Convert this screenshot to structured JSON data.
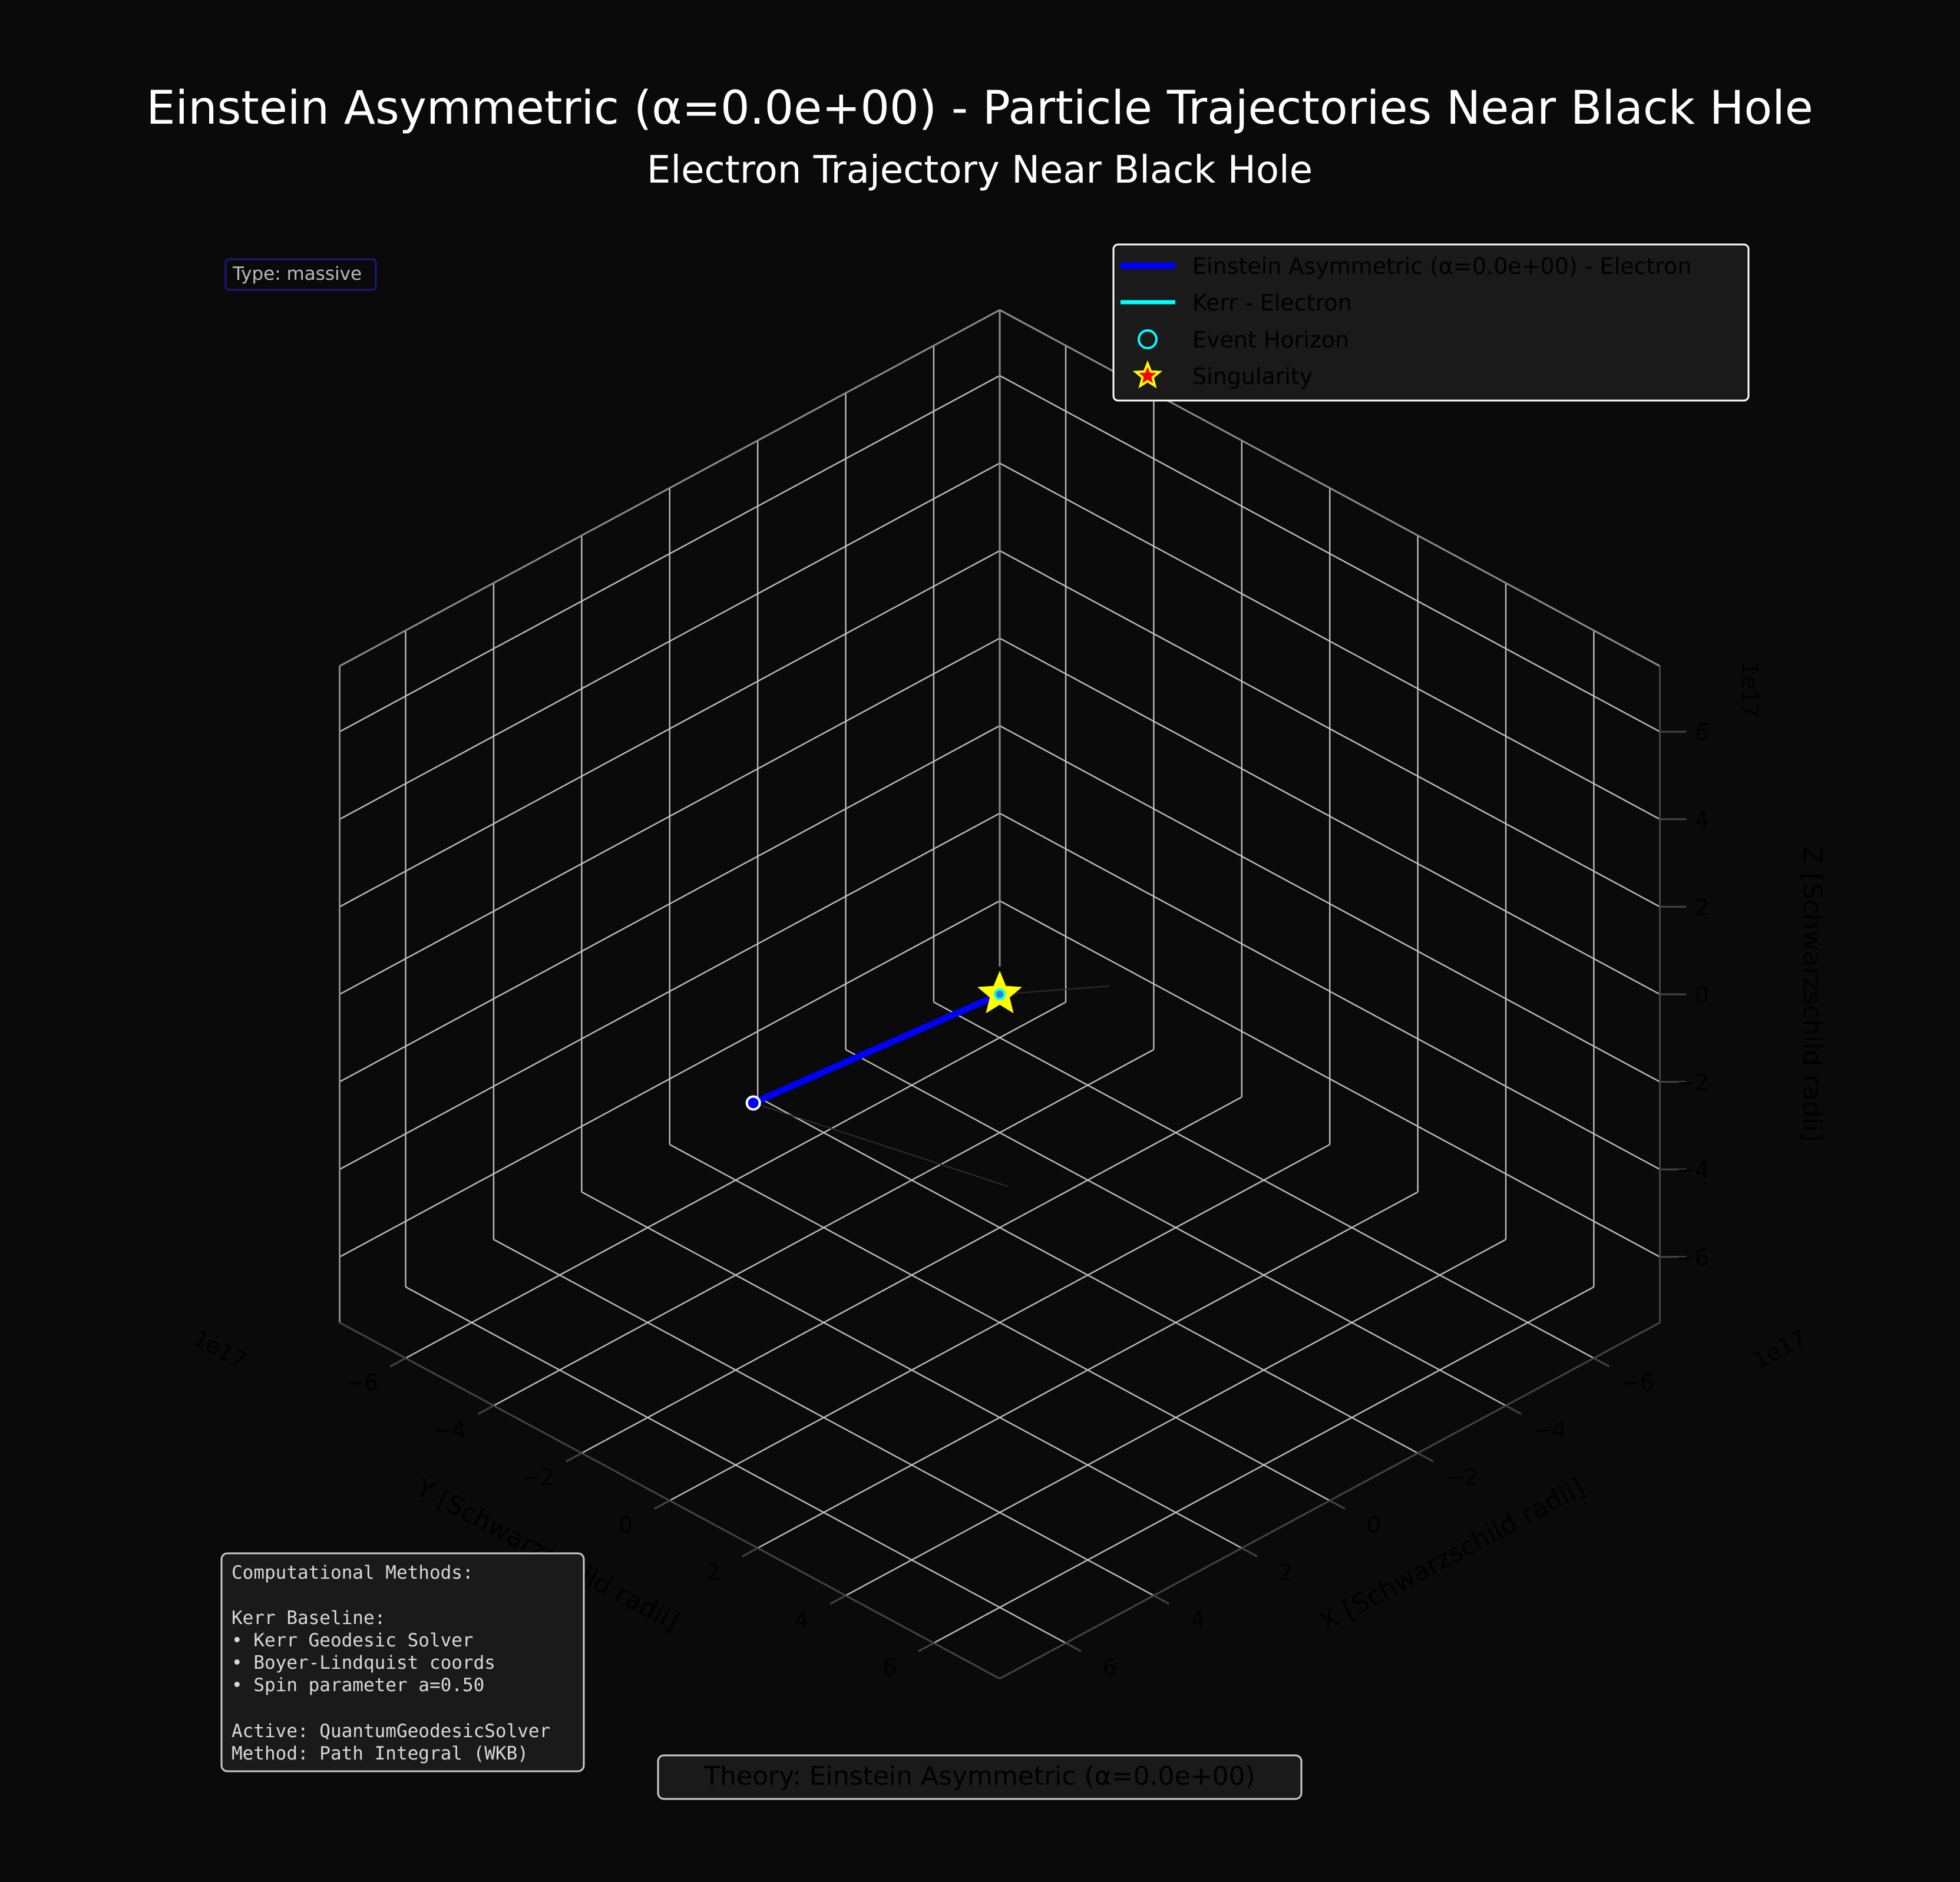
{
  "page": {
    "title": "Einstein Asymmetric (α=0.0e+00) - Particle Trajectories Near Black Hole"
  },
  "chart_data": {
    "type": "line3d",
    "title": "Electron Trajectory Near Black Hole",
    "xlabel": "X [Schwarzschild radii]",
    "ylabel": "Y [Schwarzschild radii]",
    "zlabel": "Z [Schwarzschild radii]",
    "offset_label": "1e17",
    "xlim": [
      -7.5,
      7.5
    ],
    "ylim": [
      -7.5,
      7.5
    ],
    "zlim": [
      -7.5,
      7.5
    ],
    "x_ticks": [
      -6,
      -4,
      -2,
      0,
      2,
      4,
      6
    ],
    "y_ticks": [
      -6,
      -4,
      -2,
      0,
      2,
      4,
      6
    ],
    "z_ticks": [
      -6,
      -4,
      -2,
      0,
      2,
      4,
      6
    ],
    "tick_labels": [
      "−6",
      "−4",
      "−2",
      "0",
      "2",
      "4",
      "6"
    ],
    "grid": true,
    "legend_position": "top-right",
    "series": [
      {
        "name": "Einstein Asymmetric (α=0.0e+00) - Electron",
        "color": "#0000ff",
        "x": [
          2.6,
          0
        ],
        "y": [
          -3.0,
          0
        ],
        "z": [
          -2.7,
          0
        ]
      },
      {
        "name": "Kerr - Electron",
        "color": "#00ffff",
        "x": [],
        "y": [],
        "z": []
      }
    ],
    "markers": [
      {
        "name": "Event Horizon",
        "symbol": "circle",
        "color": "#00ffff",
        "x": 0,
        "y": 0,
        "z": 0
      },
      {
        "name": "Singularity",
        "symbol": "star",
        "color": "#ffff00",
        "edge": "#ff0000",
        "x": 0,
        "y": 0,
        "z": 0
      }
    ],
    "start_point": {
      "x": 2.6,
      "y": -3.0,
      "z": -2.7,
      "color": "#0000ff"
    }
  },
  "type_box": {
    "text": "Type: massive"
  },
  "methods_box": {
    "lines": [
      "Computational Methods:",
      "",
      "Kerr Baseline:",
      "• Kerr Geodesic Solver",
      "• Boyer-Lindquist coords",
      "• Spin parameter a=0.50",
      "",
      "Active: QuantumGeodesicSolver",
      "Method: Path Integral (WKB)"
    ]
  },
  "theory_box": {
    "text": "Theory: Einstein Asymmetric (α=0.0e+00)"
  },
  "colors": {
    "background": "#0a0a0a",
    "grid": "#bdbdbd",
    "tick_text": "#000000",
    "title_text": "#ffffff"
  }
}
